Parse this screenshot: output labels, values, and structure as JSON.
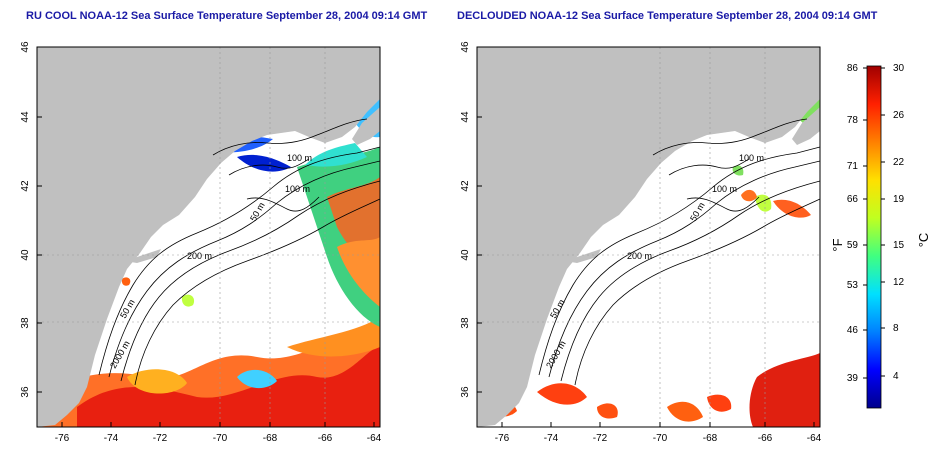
{
  "titles": {
    "left": "RU COOL NOAA-12 Sea Surface Temperature September 28, 2004 09:14 GMT",
    "right": "DECLOUDED NOAA-12 Sea Surface Temperature September 28, 2004 09:14 GMT"
  },
  "map": {
    "lon_ticks": [
      "-76",
      "-74",
      "-72",
      "-70",
      "-68",
      "-66",
      "-64"
    ],
    "lat_ticks": [
      "46",
      "44",
      "42",
      "40",
      "38",
      "36"
    ],
    "contour_labels": {
      "m100": "100 m",
      "m50": "50 m",
      "m200": "200 m",
      "m2000": "2000 m"
    },
    "colors": {
      "land": "#c0c0c0",
      "water_bg": "#ffffff",
      "contour": "#000000",
      "grid": "#9a9a9a"
    }
  },
  "colorbar": {
    "fahrenheit_ticks": [
      "86",
      "78",
      "71",
      "66",
      "59",
      "53",
      "46",
      "39"
    ],
    "celsius_ticks": [
      "30",
      "26",
      "22",
      "19",
      "15",
      "12",
      "8",
      "4"
    ],
    "fahrenheit_unit": "°F",
    "celsius_unit": "°C",
    "gradient": [
      "#00008c",
      "#0000ff",
      "#0080ff",
      "#00e0ff",
      "#40ff80",
      "#c0ff20",
      "#ffe000",
      "#ff8000",
      "#ff2000",
      "#a00000"
    ]
  }
}
